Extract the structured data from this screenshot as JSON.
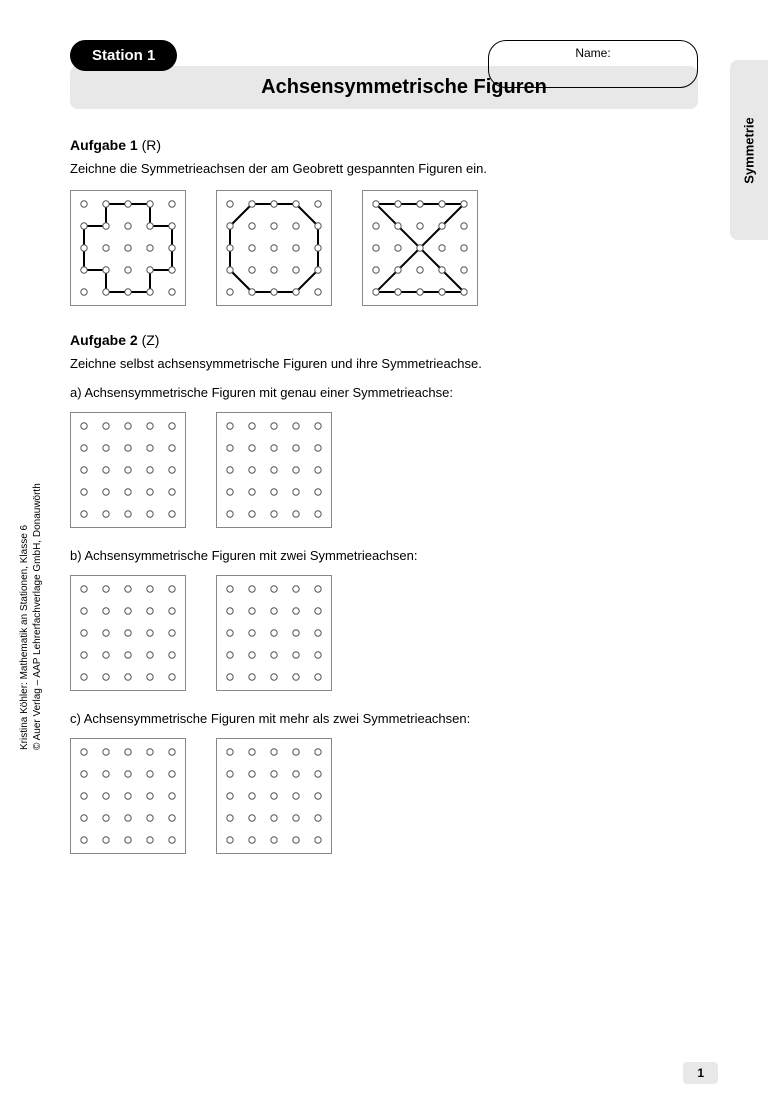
{
  "station_label": "Station 1",
  "name_label": "Name:",
  "title": "Achsensymmetrische Figuren",
  "side_tab": "Symmetrie",
  "task1": {
    "label": "Aufgabe 1",
    "suffix": " (R)",
    "desc": "Zeichne die Symmetrieachsen der am Geobrett gespannten Figuren ein."
  },
  "task2": {
    "label": "Aufgabe 2",
    "suffix": " (Z)",
    "desc": "Zeichne selbst achsensymmetrische Figuren und ihre Symmetrieachse.",
    "a": "a)  Achsensymmetrische Figuren mit genau einer Symmetrieachse:",
    "b": "b)  Achsensymmetrische Figuren mit zwei Symmetrieachsen:",
    "c": "c)  Achsensymmetrische Figuren mit mehr als zwei Symmetrieachsen:"
  },
  "copyright_line1": "Kristina Köhler: Mathematik an Stationen, Klasse 6",
  "copyright_line2": "© Auer Verlag – AAP Lehrerfachverlage GmbH, Donauwörth",
  "page_number": "1",
  "geoboard": {
    "grid_size": 5,
    "cell": 22,
    "dot_radius": 3.2,
    "dot_fill": "#ffffff",
    "dot_stroke": "#555555",
    "line_stroke": "#000000",
    "line_width": 2,
    "border_color": "#888888"
  },
  "shapes": {
    "cross": [
      [
        1,
        0
      ],
      [
        3,
        0
      ],
      [
        3,
        1
      ],
      [
        4,
        1
      ],
      [
        4,
        3
      ],
      [
        3,
        3
      ],
      [
        3,
        4
      ],
      [
        1,
        4
      ],
      [
        1,
        3
      ],
      [
        0,
        3
      ],
      [
        0,
        1
      ],
      [
        1,
        1
      ]
    ],
    "octagon": [
      [
        1,
        0
      ],
      [
        3,
        0
      ],
      [
        4,
        1
      ],
      [
        4,
        3
      ],
      [
        3,
        4
      ],
      [
        1,
        4
      ],
      [
        0,
        3
      ],
      [
        0,
        1
      ]
    ],
    "hourglass": [
      [
        0,
        0
      ],
      [
        4,
        0
      ],
      [
        0,
        4
      ],
      [
        4,
        4
      ]
    ]
  }
}
